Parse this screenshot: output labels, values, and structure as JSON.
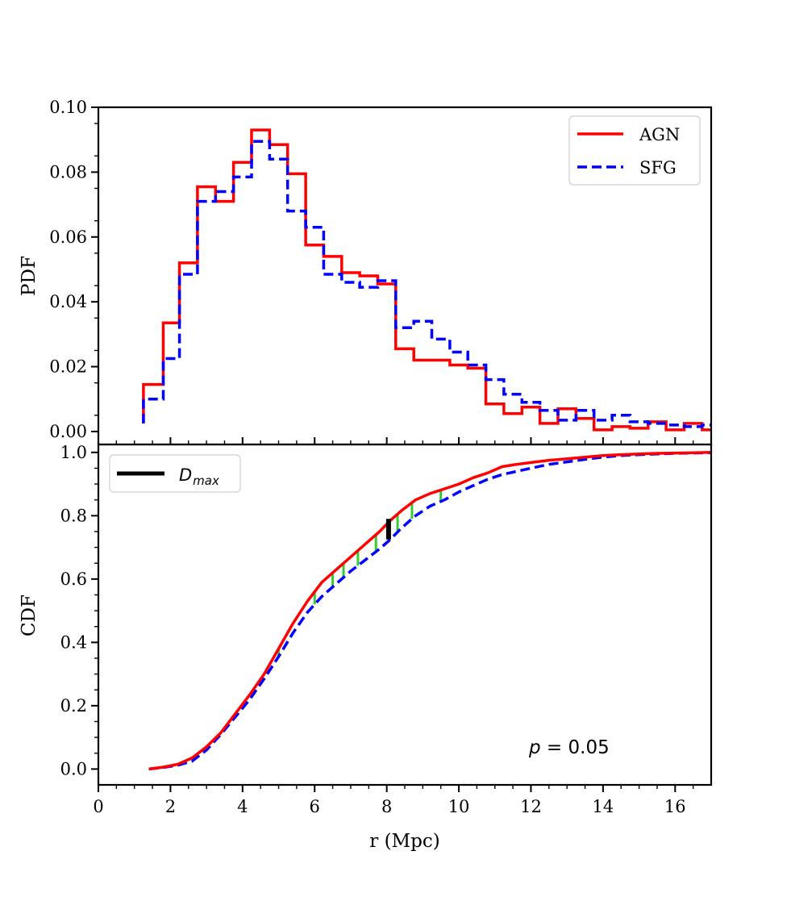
{
  "chart_data": [
    {
      "type": "line",
      "step": "post",
      "ylabel": "PDF",
      "xlim": [
        0,
        17
      ],
      "ylim": [
        -0.004,
        0.1
      ],
      "yticks": [
        0.0,
        0.02,
        0.04,
        0.06,
        0.08,
        0.1
      ],
      "ytick_labels": [
        "0.00",
        "0.02",
        "0.04",
        "0.06",
        "0.08",
        "0.10"
      ],
      "legend": {
        "position": "top-right",
        "entries": [
          "AGN",
          "SFG"
        ]
      },
      "bin_edges": [
        1.25,
        1.8,
        2.25,
        2.75,
        3.25,
        3.75,
        4.25,
        4.75,
        5.25,
        5.75,
        6.25,
        6.75,
        7.25,
        7.75,
        8.25,
        8.75,
        9.25,
        9.75,
        10.25,
        10.75,
        11.25,
        11.75,
        12.25,
        12.75,
        13.25,
        13.75,
        14.25,
        14.75,
        15.25,
        15.75,
        16.25,
        16.75,
        17.0
      ],
      "series": [
        {
          "name": "AGN",
          "color": "#ff0000",
          "linestyle": "solid",
          "values": [
            0.0145,
            0.0335,
            0.052,
            0.0755,
            0.071,
            0.083,
            0.093,
            0.0885,
            0.0795,
            0.0575,
            0.054,
            0.049,
            0.048,
            0.0455,
            0.0255,
            0.022,
            0.022,
            0.0205,
            0.0195,
            0.0085,
            0.0055,
            0.0075,
            0.0025,
            0.007,
            0.004,
            0.0005,
            0.0015,
            0.001,
            0.003,
            0.0005,
            0.0025,
            0.0005
          ]
        },
        {
          "name": "SFG",
          "color": "#0000ff",
          "linestyle": "dashed",
          "values": [
            0.01,
            0.0225,
            0.0485,
            0.071,
            0.074,
            0.0785,
            0.0895,
            0.084,
            0.068,
            0.063,
            0.0485,
            0.046,
            0.0445,
            0.0465,
            0.032,
            0.034,
            0.0285,
            0.0245,
            0.0205,
            0.016,
            0.0115,
            0.009,
            0.0065,
            0.0035,
            0.0065,
            0.0035,
            0.005,
            0.003,
            0.0025,
            0.002,
            0.0015,
            0.002
          ]
        }
      ]
    },
    {
      "type": "line",
      "xlabel": "r (Mpc)",
      "ylabel": "CDF",
      "xlim": [
        0,
        17
      ],
      "ylim": [
        -0.05,
        1.025
      ],
      "xticks": [
        0,
        2,
        4,
        6,
        8,
        10,
        12,
        14,
        16
      ],
      "yticks": [
        0.0,
        0.2,
        0.4,
        0.6,
        0.8,
        1.0
      ],
      "ytick_labels": [
        "0.0",
        "0.2",
        "0.4",
        "0.6",
        "0.8",
        "1.0"
      ],
      "legend": {
        "position": "top-left",
        "entries": [
          "D_max"
        ]
      },
      "annotation": "p = 0.05",
      "series": [
        {
          "name": "AGN",
          "color": "#ff0000",
          "linestyle": "solid",
          "x": [
            1.4,
            1.8,
            2.2,
            2.6,
            3.0,
            3.4,
            3.8,
            4.2,
            4.6,
            5.0,
            5.4,
            5.8,
            6.2,
            6.6,
            7.0,
            7.4,
            7.8,
            8.1,
            8.4,
            8.8,
            9.2,
            9.6,
            10.0,
            10.4,
            10.8,
            11.2,
            11.6,
            12.0,
            12.5,
            13.0,
            13.5,
            14.0,
            14.5,
            15.0,
            15.5,
            16.0,
            16.5,
            17.0
          ],
          "y": [
            0.0,
            0.006,
            0.015,
            0.035,
            0.07,
            0.115,
            0.175,
            0.235,
            0.3,
            0.38,
            0.46,
            0.53,
            0.59,
            0.63,
            0.67,
            0.71,
            0.75,
            0.785,
            0.815,
            0.85,
            0.87,
            0.885,
            0.9,
            0.92,
            0.935,
            0.955,
            0.962,
            0.968,
            0.975,
            0.98,
            0.985,
            0.99,
            0.993,
            0.995,
            0.997,
            0.998,
            0.999,
            1.0
          ]
        },
        {
          "name": "SFG",
          "color": "#0000ff",
          "linestyle": "dashed",
          "x": [
            1.4,
            1.8,
            2.2,
            2.6,
            3.0,
            3.4,
            3.8,
            4.2,
            4.6,
            5.0,
            5.4,
            5.8,
            6.2,
            6.6,
            7.0,
            7.4,
            7.8,
            8.1,
            8.4,
            8.8,
            9.2,
            9.6,
            10.0,
            10.4,
            10.8,
            11.2,
            11.6,
            12.0,
            12.5,
            13.0,
            13.5,
            14.0,
            14.5,
            15.0,
            15.5,
            16.0,
            16.5,
            17.0
          ],
          "y": [
            0.0,
            0.005,
            0.012,
            0.025,
            0.06,
            0.11,
            0.165,
            0.22,
            0.285,
            0.355,
            0.43,
            0.495,
            0.545,
            0.585,
            0.625,
            0.66,
            0.695,
            0.725,
            0.76,
            0.8,
            0.83,
            0.85,
            0.875,
            0.895,
            0.915,
            0.93,
            0.94,
            0.95,
            0.962,
            0.97,
            0.978,
            0.985,
            0.99,
            0.993,
            0.995,
            0.997,
            0.998,
            0.999
          ]
        }
      ],
      "difference_markers": {
        "color": "#33cc33",
        "x": [
          5.0,
          6.0,
          6.5,
          6.8,
          7.2,
          7.7,
          8.3,
          8.7,
          9.5
        ]
      },
      "d_max": {
        "label": "D_max",
        "color": "#000000",
        "x": 8.05,
        "y_low": 0.725,
        "y_high": 0.79
      }
    }
  ]
}
